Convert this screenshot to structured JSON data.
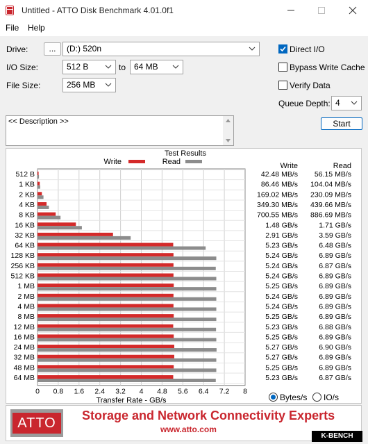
{
  "window": {
    "title": "Untitled - ATTO Disk Benchmark 4.01.0f1"
  },
  "menu": [
    "File",
    "Help"
  ],
  "controls": {
    "drive_label": "Drive:",
    "browse_label": "...",
    "drive_value": "(D:) 520n",
    "io_size_label": "I/O Size:",
    "io_from": "512 B",
    "io_to_label": "to",
    "io_to": "64 MB",
    "file_size_label": "File Size:",
    "file_size": "256 MB",
    "direct_io": "Direct I/O",
    "bypass_cache": "Bypass Write Cache",
    "verify_data": "Verify Data",
    "queue_depth_label": "Queue Depth:",
    "queue_depth": "4",
    "start": "Start",
    "description": "<< Description >>",
    "direct_io_checked": true,
    "bypass_checked": false,
    "verify_checked": false
  },
  "results": {
    "heading": "Test Results",
    "col_write": "Write",
    "col_read": "Read",
    "legend_write": "Write",
    "legend_read": "Read",
    "rows": [
      {
        "size": "512 B",
        "write": "42.48 MB/s",
        "read": "56.15 MB/s"
      },
      {
        "size": "1 KB",
        "write": "86.46 MB/s",
        "read": "104.04 MB/s"
      },
      {
        "size": "2 KB",
        "write": "169.02 MB/s",
        "read": "230.09 MB/s"
      },
      {
        "size": "4 KB",
        "write": "349.30 MB/s",
        "read": "439.66 MB/s"
      },
      {
        "size": "8 KB",
        "write": "700.55 MB/s",
        "read": "886.69 MB/s"
      },
      {
        "size": "16 KB",
        "write": "1.48 GB/s",
        "read": "1.71 GB/s"
      },
      {
        "size": "32 KB",
        "write": "2.91 GB/s",
        "read": "3.59 GB/s"
      },
      {
        "size": "64 KB",
        "write": "5.23 GB/s",
        "read": "6.48 GB/s"
      },
      {
        "size": "128 KB",
        "write": "5.24 GB/s",
        "read": "6.89 GB/s"
      },
      {
        "size": "256 KB",
        "write": "5.24 GB/s",
        "read": "6.87 GB/s"
      },
      {
        "size": "512 KB",
        "write": "5.24 GB/s",
        "read": "6.89 GB/s"
      },
      {
        "size": "1 MB",
        "write": "5.25 GB/s",
        "read": "6.89 GB/s"
      },
      {
        "size": "2 MB",
        "write": "5.24 GB/s",
        "read": "6.89 GB/s"
      },
      {
        "size": "4 MB",
        "write": "5.24 GB/s",
        "read": "6.89 GB/s"
      },
      {
        "size": "8 MB",
        "write": "5.25 GB/s",
        "read": "6.89 GB/s"
      },
      {
        "size": "12 MB",
        "write": "5.23 GB/s",
        "read": "6.88 GB/s"
      },
      {
        "size": "16 MB",
        "write": "5.25 GB/s",
        "read": "6.89 GB/s"
      },
      {
        "size": "24 MB",
        "write": "5.27 GB/s",
        "read": "6.90 GB/s"
      },
      {
        "size": "32 MB",
        "write": "5.27 GB/s",
        "read": "6.89 GB/s"
      },
      {
        "size": "48 MB",
        "write": "5.25 GB/s",
        "read": "6.89 GB/s"
      },
      {
        "size": "64 MB",
        "write": "5.23 GB/s",
        "read": "6.87 GB/s"
      }
    ],
    "units_bytes": "Bytes/s",
    "units_io": "IO/s",
    "units_selected": "Bytes/s"
  },
  "chart_data": {
    "type": "bar",
    "orientation": "horizontal",
    "title": "Test Results",
    "xlabel": "Transfer Rate - GB/s",
    "ylabel": "",
    "xlim": [
      0,
      8
    ],
    "xticks": [
      "0",
      "0.8",
      "1.6",
      "2.4",
      "3.2",
      "4",
      "4.8",
      "5.6",
      "6.4",
      "7.2",
      "8"
    ],
    "categories": [
      "512 B",
      "1 KB",
      "2 KB",
      "4 KB",
      "8 KB",
      "16 KB",
      "32 KB",
      "64 KB",
      "128 KB",
      "256 KB",
      "512 KB",
      "1 MB",
      "2 MB",
      "4 MB",
      "8 MB",
      "12 MB",
      "16 MB",
      "24 MB",
      "32 MB",
      "48 MB",
      "64 MB"
    ],
    "series": [
      {
        "name": "Write",
        "color": "#d42a2a",
        "values": [
          0.0425,
          0.0865,
          0.169,
          0.349,
          0.701,
          1.48,
          2.91,
          5.23,
          5.24,
          5.24,
          5.24,
          5.25,
          5.24,
          5.24,
          5.25,
          5.23,
          5.25,
          5.27,
          5.27,
          5.25,
          5.23
        ]
      },
      {
        "name": "Read",
        "color": "#8c8c8c",
        "values": [
          0.0562,
          0.104,
          0.23,
          0.44,
          0.887,
          1.71,
          3.59,
          6.48,
          6.89,
          6.87,
          6.89,
          6.89,
          6.89,
          6.89,
          6.89,
          6.88,
          6.89,
          6.9,
          6.89,
          6.89,
          6.87
        ]
      }
    ],
    "legend": "top-center",
    "grid": true
  },
  "banner": {
    "logo": "ATTO",
    "tagline": "Storage and Network Connectivity Experts",
    "url": "www.atto.com",
    "brand_red": "#c9262e"
  },
  "watermark": "K-BENCH"
}
